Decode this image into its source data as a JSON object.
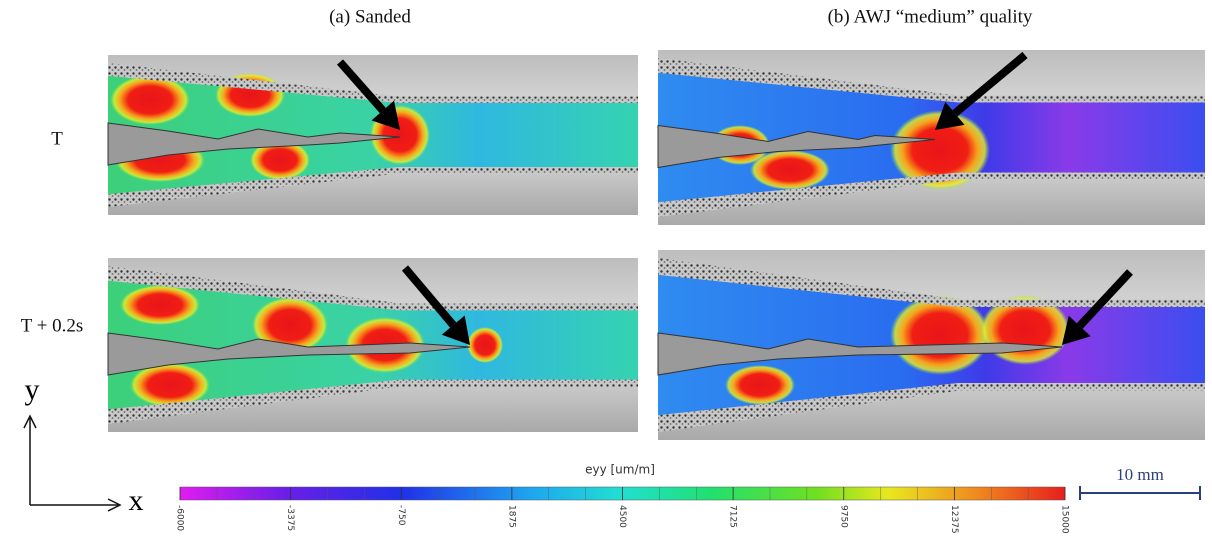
{
  "figure": {
    "columns": [
      "(a) Sanded",
      "(b) AWJ “medium” quality"
    ],
    "rows": [
      "T",
      "T + 0.2s"
    ],
    "colorbar": {
      "title": "eyy [um/m]",
      "ticks": [
        -6000,
        -3375,
        -750,
        1875,
        4500,
        7125,
        9750,
        12375,
        15000
      ]
    },
    "scale_bar": "10 mm",
    "axes": {
      "x": "x",
      "y": "y"
    }
  }
}
